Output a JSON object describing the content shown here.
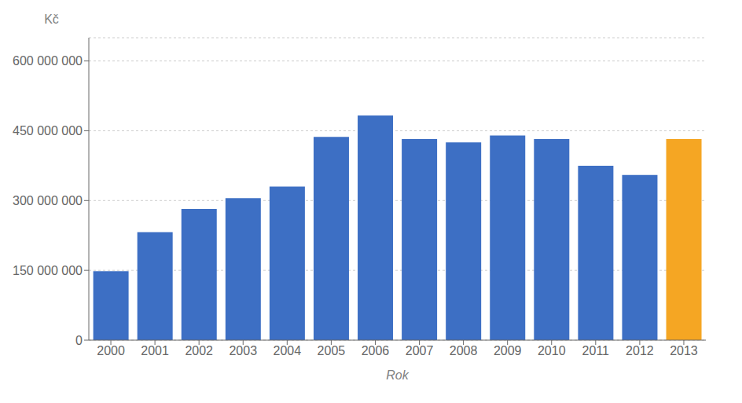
{
  "chart_data": {
    "type": "bar",
    "x_label": "Rok",
    "y_label": "Kč",
    "categories": [
      "2000",
      "2001",
      "2002",
      "2003",
      "2004",
      "2005",
      "2006",
      "2007",
      "2008",
      "2009",
      "2010",
      "2011",
      "2012",
      "2013"
    ],
    "values": [
      148000000,
      232000000,
      282000000,
      305000000,
      330000000,
      437000000,
      483000000,
      432000000,
      425000000,
      440000000,
      432000000,
      375000000,
      355000000,
      432000000
    ],
    "colors": [
      "#3d6fc4",
      "#3d6fc4",
      "#3d6fc4",
      "#3d6fc4",
      "#3d6fc4",
      "#3d6fc4",
      "#3d6fc4",
      "#3d6fc4",
      "#3d6fc4",
      "#3d6fc4",
      "#3d6fc4",
      "#3d6fc4",
      "#3d6fc4",
      "#f5a623"
    ],
    "ylim": [
      0,
      650000000
    ],
    "yticks": [
      0,
      {
        "value": 150000000,
        "label": "150 000 000"
      },
      {
        "value": 300000000,
        "label": "300 000 000"
      },
      {
        "value": 450000000,
        "label": "450 000 000"
      },
      {
        "value": 600000000,
        "label": "600 000 000"
      }
    ],
    "grid": true
  }
}
